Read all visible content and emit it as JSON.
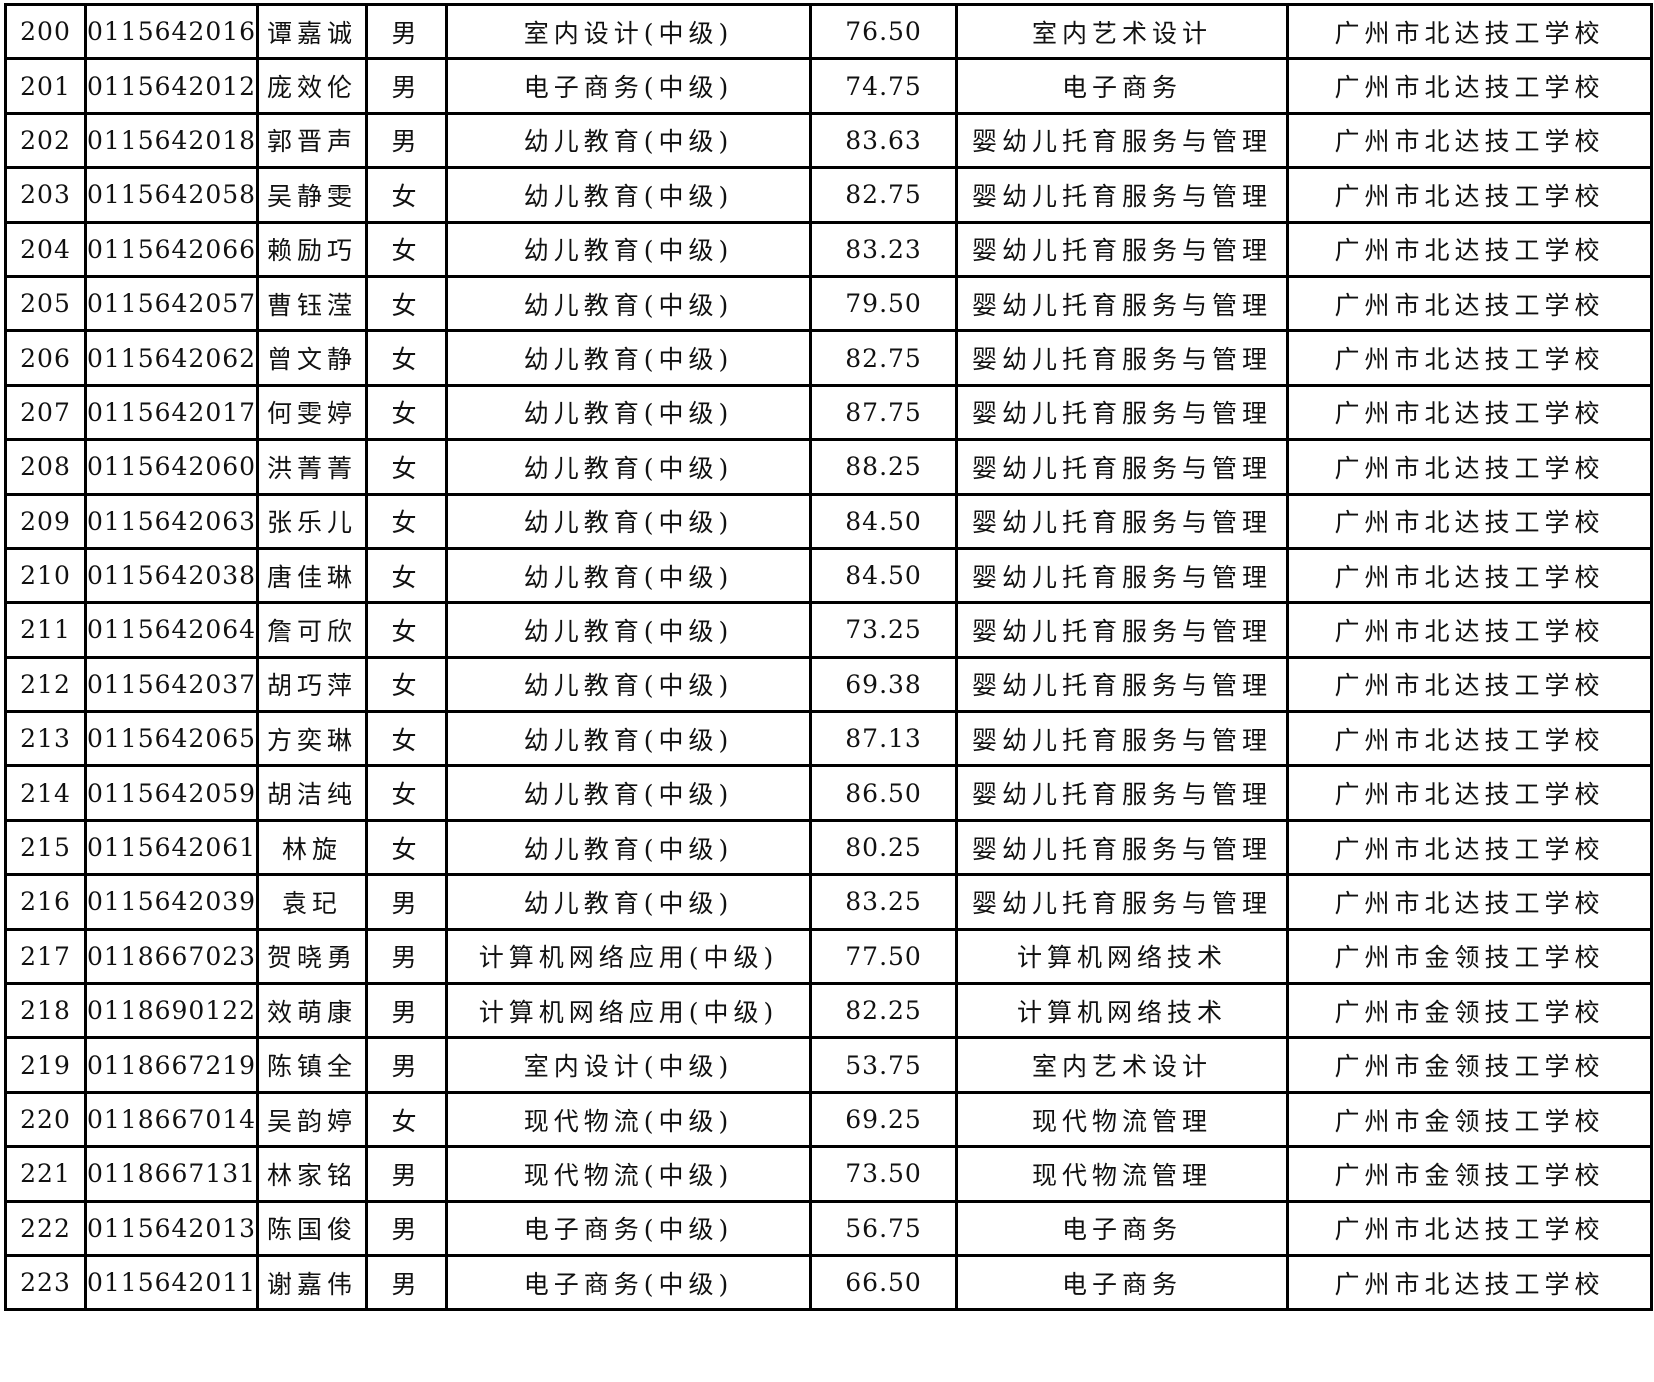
{
  "rows": [
    [
      "200",
      "0115642016",
      "谭嘉诚",
      "男",
      "室内设计(中级)",
      "76.50",
      "室内艺术设计",
      "广州市北达技工学校"
    ],
    [
      "201",
      "0115642012",
      "庞效伦",
      "男",
      "电子商务(中级)",
      "74.75",
      "电子商务",
      "广州市北达技工学校"
    ],
    [
      "202",
      "0115642018",
      "郭晋声",
      "男",
      "幼儿教育(中级)",
      "83.63",
      "婴幼儿托育服务与管理",
      "广州市北达技工学校"
    ],
    [
      "203",
      "0115642058",
      "吴静雯",
      "女",
      "幼儿教育(中级)",
      "82.75",
      "婴幼儿托育服务与管理",
      "广州市北达技工学校"
    ],
    [
      "204",
      "0115642066",
      "赖励巧",
      "女",
      "幼儿教育(中级)",
      "83.23",
      "婴幼儿托育服务与管理",
      "广州市北达技工学校"
    ],
    [
      "205",
      "0115642057",
      "曹钰滢",
      "女",
      "幼儿教育(中级)",
      "79.50",
      "婴幼儿托育服务与管理",
      "广州市北达技工学校"
    ],
    [
      "206",
      "0115642062",
      "曾文静",
      "女",
      "幼儿教育(中级)",
      "82.75",
      "婴幼儿托育服务与管理",
      "广州市北达技工学校"
    ],
    [
      "207",
      "0115642017",
      "何雯婷",
      "女",
      "幼儿教育(中级)",
      "87.75",
      "婴幼儿托育服务与管理",
      "广州市北达技工学校"
    ],
    [
      "208",
      "0115642060",
      "洪菁菁",
      "女",
      "幼儿教育(中级)",
      "88.25",
      "婴幼儿托育服务与管理",
      "广州市北达技工学校"
    ],
    [
      "209",
      "0115642063",
      "张乐儿",
      "女",
      "幼儿教育(中级)",
      "84.50",
      "婴幼儿托育服务与管理",
      "广州市北达技工学校"
    ],
    [
      "210",
      "0115642038",
      "唐佳琳",
      "女",
      "幼儿教育(中级)",
      "84.50",
      "婴幼儿托育服务与管理",
      "广州市北达技工学校"
    ],
    [
      "211",
      "0115642064",
      "詹可欣",
      "女",
      "幼儿教育(中级)",
      "73.25",
      "婴幼儿托育服务与管理",
      "广州市北达技工学校"
    ],
    [
      "212",
      "0115642037",
      "胡巧萍",
      "女",
      "幼儿教育(中级)",
      "69.38",
      "婴幼儿托育服务与管理",
      "广州市北达技工学校"
    ],
    [
      "213",
      "0115642065",
      "方奕琳",
      "女",
      "幼儿教育(中级)",
      "87.13",
      "婴幼儿托育服务与管理",
      "广州市北达技工学校"
    ],
    [
      "214",
      "0115642059",
      "胡洁纯",
      "女",
      "幼儿教育(中级)",
      "86.50",
      "婴幼儿托育服务与管理",
      "广州市北达技工学校"
    ],
    [
      "215",
      "0115642061",
      "林旋",
      "女",
      "幼儿教育(中级)",
      "80.25",
      "婴幼儿托育服务与管理",
      "广州市北达技工学校"
    ],
    [
      "216",
      "0115642039",
      "袁玘",
      "男",
      "幼儿教育(中级)",
      "83.25",
      "婴幼儿托育服务与管理",
      "广州市北达技工学校"
    ],
    [
      "217",
      "0118667023",
      "贺晓勇",
      "男",
      "计算机网络应用(中级)",
      "77.50",
      "计算机网络技术",
      "广州市金领技工学校"
    ],
    [
      "218",
      "0118690122",
      "效萌康",
      "男",
      "计算机网络应用(中级)",
      "82.25",
      "计算机网络技术",
      "广州市金领技工学校"
    ],
    [
      "219",
      "0118667219",
      "陈镇全",
      "男",
      "室内设计(中级)",
      "53.75",
      "室内艺术设计",
      "广州市金领技工学校"
    ],
    [
      "220",
      "0118667014",
      "吴韵婷",
      "女",
      "现代物流(中级)",
      "69.25",
      "现代物流管理",
      "广州市金领技工学校"
    ],
    [
      "221",
      "0118667131",
      "林家铭",
      "男",
      "现代物流(中级)",
      "73.50",
      "现代物流管理",
      "广州市金领技工学校"
    ],
    [
      "222",
      "0115642013",
      "陈国俊",
      "男",
      "电子商务(中级)",
      "56.75",
      "电子商务",
      "广州市北达技工学校"
    ],
    [
      "223",
      "0115642011",
      "谢嘉伟",
      "男",
      "电子商务(中级)",
      "66.50",
      "电子商务",
      "广州市北达技工学校"
    ]
  ]
}
